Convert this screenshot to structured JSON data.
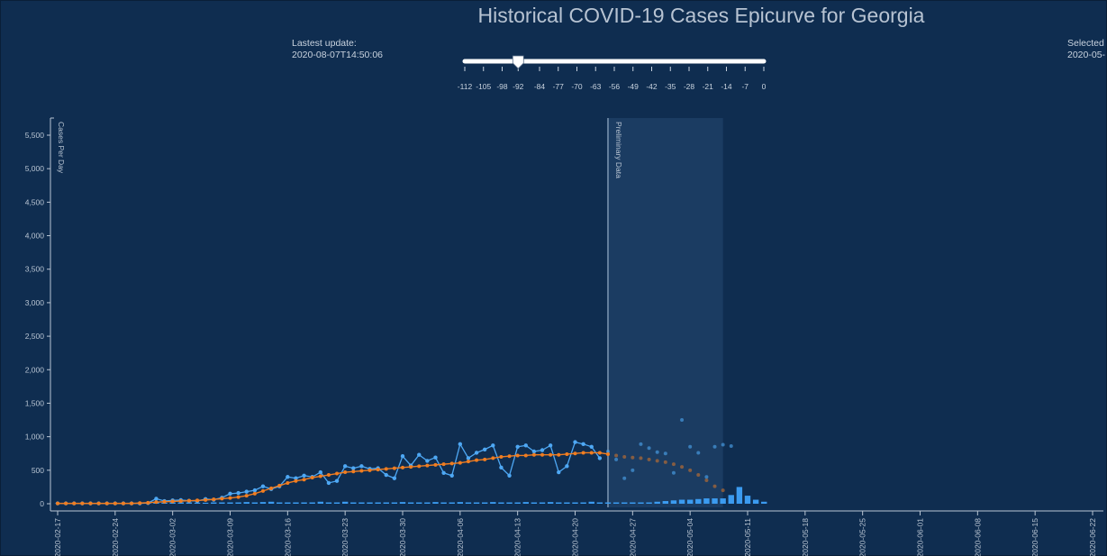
{
  "title": "Historical COVID-19 Cases Epicurve for Georgia",
  "update": {
    "label": "Lastest update:",
    "value": "2020-08-07T14:50:06"
  },
  "selected": {
    "label": "Selected",
    "value": "2020-05-"
  },
  "slider": {
    "ticks": [
      -112,
      -105,
      -98,
      -92,
      -84,
      -77,
      -70,
      -63,
      -56,
      -49,
      -42,
      -35,
      -28,
      -21,
      -14,
      -7,
      0
    ],
    "value": -92,
    "min": -112,
    "max": 0
  },
  "colors": {
    "background": "#0f2d50",
    "reported": "#4ea8f4",
    "average": "#f07d21",
    "preliminary_band": "#1b3c62",
    "bars": "#3b9bf0"
  },
  "chart_data": {
    "type": "line",
    "ylabel": "Cases Per Day",
    "preliminary_label": "Preliminary Data",
    "ylim": [
      0,
      5800
    ],
    "yticks": [
      0,
      500,
      1000,
      1500,
      2000,
      2500,
      3000,
      3500,
      4000,
      4500,
      5000,
      5500
    ],
    "xlim": [
      "2020-02-17",
      "2020-06-24"
    ],
    "xticks": [
      "2020-02-17",
      "2020-02-24",
      "2020-03-02",
      "2020-03-09",
      "2020-03-16",
      "2020-03-23",
      "2020-03-30",
      "2020-04-06",
      "2020-04-13",
      "2020-04-20",
      "2020-04-27",
      "2020-05-04",
      "2020-05-11",
      "2020-05-18",
      "2020-05-25",
      "2020-06-01",
      "2020-06-08",
      "2020-06-15",
      "2020-06-22"
    ],
    "preliminary_range": [
      "2020-04-24",
      "2020-05-08"
    ],
    "start_date": "2020-02-17",
    "series": [
      {
        "values": [
          5,
          5,
          5,
          5,
          5,
          5,
          5,
          5,
          5,
          5,
          5,
          10,
          75,
          40,
          50,
          55,
          45,
          40,
          70,
          60,
          90,
          150,
          160,
          180,
          200,
          260,
          220,
          260,
          400,
          380,
          420,
          400,
          470,
          310,
          340,
          560,
          530,
          560,
          520,
          530,
          430,
          380,
          710,
          570,
          730,
          640,
          690,
          460,
          420,
          890,
          680,
          760,
          810,
          870,
          540,
          420,
          850,
          870,
          780,
          800,
          870,
          470,
          560,
          920,
          890,
          850,
          680
        ]
      },
      {
        "values": [
          5,
          5,
          5,
          5,
          5,
          5,
          5,
          5,
          5,
          5,
          10,
          15,
          25,
          30,
          35,
          40,
          45,
          50,
          55,
          65,
          75,
          85,
          100,
          120,
          150,
          190,
          230,
          270,
          310,
          340,
          360,
          390,
          410,
          430,
          450,
          470,
          480,
          490,
          500,
          510,
          520,
          530,
          540,
          550,
          560,
          570,
          580,
          590,
          600,
          610,
          630,
          650,
          660,
          680,
          700,
          710,
          720,
          720,
          730,
          730,
          730,
          730,
          740,
          750,
          760,
          760,
          760,
          740,
          720,
          700,
          690,
          680,
          660,
          640,
          620,
          590,
          550,
          500,
          430,
          350,
          260,
          200
        ]
      },
      {
        "values": [
          780,
          660,
          380,
          500,
          890,
          830,
          770,
          750,
          460,
          1250,
          850,
          760,
          400,
          850,
          880,
          860
        ]
      }
    ],
    "bars": [
      5,
      0,
      5,
      5,
      5,
      5,
      10,
      10,
      10,
      15,
      15,
      15,
      20,
      15,
      20,
      20,
      20,
      15,
      15,
      20,
      20,
      20,
      20,
      25,
      20,
      25,
      30,
      20,
      20,
      20,
      20,
      20,
      30,
      20,
      20,
      30,
      20,
      20,
      20,
      20,
      20,
      20,
      25,
      20,
      20,
      20,
      25,
      20,
      20,
      25,
      20,
      20,
      20,
      25,
      20,
      20,
      20,
      25,
      20,
      20,
      25,
      20,
      20,
      20,
      20,
      30,
      20,
      20,
      20,
      20,
      20,
      20,
      20,
      30,
      40,
      50,
      60,
      60,
      70,
      80,
      80,
      80,
      130,
      250,
      120,
      60,
      30
    ]
  }
}
